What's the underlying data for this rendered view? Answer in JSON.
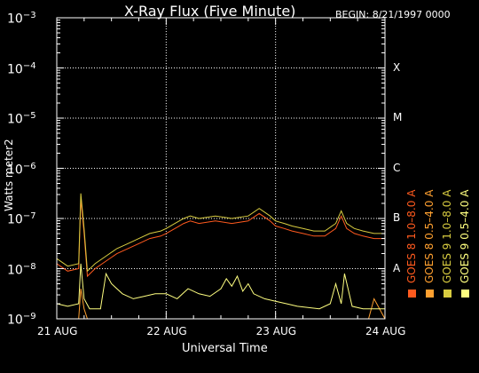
{
  "chart_data": {
    "type": "line",
    "title": "X-Ray Flux (Five Minute)",
    "begin_label": "BEGIN: 8/21/1997 0000",
    "xlabel": "Universal Time",
    "ylabel": "Watts meter2",
    "y_scale": "log",
    "ylim": [
      1e-09,
      0.001
    ],
    "y_ticks": [
      {
        "exp": -3,
        "label": "10",
        "sup": "−3"
      },
      {
        "exp": -4,
        "label": "10",
        "sup": "−4"
      },
      {
        "exp": -5,
        "label": "10",
        "sup": "−5"
      },
      {
        "exp": -6,
        "label": "10",
        "sup": "−6"
      },
      {
        "exp": -7,
        "label": "10",
        "sup": "−7"
      },
      {
        "exp": -8,
        "label": "10",
        "sup": "−8"
      },
      {
        "exp": -9,
        "label": "10",
        "sup": "−9"
      }
    ],
    "x_ticks": [
      "21 AUG",
      "22 AUG",
      "23 AUG",
      "24 AUG"
    ],
    "xlim_days": [
      0,
      3
    ],
    "flare_classes": [
      {
        "label": "X",
        "exp": -4
      },
      {
        "label": "M",
        "exp": -5
      },
      {
        "label": "C",
        "exp": -6
      },
      {
        "label": "B",
        "exp": -7
      },
      {
        "label": "A",
        "exp": -8
      }
    ],
    "grid": true,
    "legend_placement": "right, vertical",
    "series": [
      {
        "name": "GOES 8 1.0–8.0 A",
        "color": "#ff5a1e",
        "x": [
          0,
          0.1,
          0.2,
          0.22,
          0.25,
          0.28,
          0.35,
          0.45,
          0.55,
          0.65,
          0.75,
          0.85,
          0.95,
          1.0,
          1.08,
          1.16,
          1.22,
          1.3,
          1.45,
          1.6,
          1.75,
          1.85,
          1.95,
          2.0,
          2.08,
          2.15,
          2.25,
          2.35,
          2.45,
          2.55,
          2.6,
          2.65,
          2.72,
          2.8,
          2.9,
          3.0
        ],
        "y_log": [
          -7.9,
          -8.05,
          -8.0,
          -6.6,
          -7.3,
          -8.15,
          -8.0,
          -7.85,
          -7.7,
          -7.6,
          -7.5,
          -7.4,
          -7.35,
          -7.3,
          -7.2,
          -7.1,
          -7.05,
          -7.1,
          -7.05,
          -7.1,
          -7.05,
          -6.9,
          -7.05,
          -7.15,
          -7.2,
          -7.25,
          -7.3,
          -7.35,
          -7.35,
          -7.2,
          -6.95,
          -7.2,
          -7.3,
          -7.35,
          -7.4,
          -7.4
        ]
      },
      {
        "name": "GOES 8 0.5–4.0 A",
        "color": "#ffa030",
        "x": [
          0,
          0.2,
          0.22,
          0.25,
          0.28,
          0.38,
          0.5,
          1.3,
          1.5,
          2.85,
          2.9,
          3.0
        ],
        "y_log": [
          -9.0,
          -9.0,
          -8.4,
          -8.8,
          -9.0,
          -9.0,
          -9.0,
          -9.0,
          -9.0,
          -9.0,
          -8.6,
          -9.0
        ]
      },
      {
        "name": "GOES 9 1.0–8.0 A",
        "color": "#d8cc40",
        "x": [
          0,
          0.1,
          0.2,
          0.22,
          0.25,
          0.28,
          0.35,
          0.45,
          0.55,
          0.65,
          0.75,
          0.85,
          0.95,
          1.0,
          1.08,
          1.16,
          1.22,
          1.3,
          1.45,
          1.6,
          1.75,
          1.85,
          1.95,
          2.0,
          2.08,
          2.15,
          2.25,
          2.35,
          2.45,
          2.55,
          2.6,
          2.65,
          2.72,
          2.8,
          2.9,
          3.0
        ],
        "y_log": [
          -7.8,
          -7.95,
          -7.9,
          -6.5,
          -7.2,
          -8.05,
          -7.9,
          -7.75,
          -7.6,
          -7.5,
          -7.4,
          -7.3,
          -7.25,
          -7.2,
          -7.1,
          -7.0,
          -6.95,
          -7.0,
          -6.95,
          -7.0,
          -6.95,
          -6.8,
          -6.95,
          -7.05,
          -7.1,
          -7.15,
          -7.2,
          -7.25,
          -7.25,
          -7.1,
          -6.85,
          -7.1,
          -7.2,
          -7.25,
          -7.3,
          -7.3
        ]
      },
      {
        "name": "GOES 9 0.5–4.0 A",
        "color": "#ffff80",
        "x": [
          0,
          0.1,
          0.2,
          0.22,
          0.25,
          0.3,
          0.4,
          0.45,
          0.5,
          0.6,
          0.7,
          0.8,
          0.9,
          1.0,
          1.1,
          1.2,
          1.3,
          1.4,
          1.5,
          1.55,
          1.6,
          1.65,
          1.7,
          1.75,
          1.8,
          1.9,
          2.0,
          2.1,
          2.2,
          2.4,
          2.5,
          2.55,
          2.6,
          2.63,
          2.7,
          2.8,
          3.0
        ],
        "y_log": [
          -8.7,
          -8.75,
          -8.7,
          -7.9,
          -8.6,
          -8.8,
          -8.8,
          -8.1,
          -8.3,
          -8.5,
          -8.6,
          -8.55,
          -8.5,
          -8.5,
          -8.6,
          -8.4,
          -8.5,
          -8.55,
          -8.4,
          -8.2,
          -8.35,
          -8.15,
          -8.45,
          -8.3,
          -8.5,
          -8.6,
          -8.65,
          -8.7,
          -8.75,
          -8.8,
          -8.7,
          -8.3,
          -8.7,
          -8.1,
          -8.75,
          -8.8,
          -8.8
        ]
      }
    ]
  }
}
